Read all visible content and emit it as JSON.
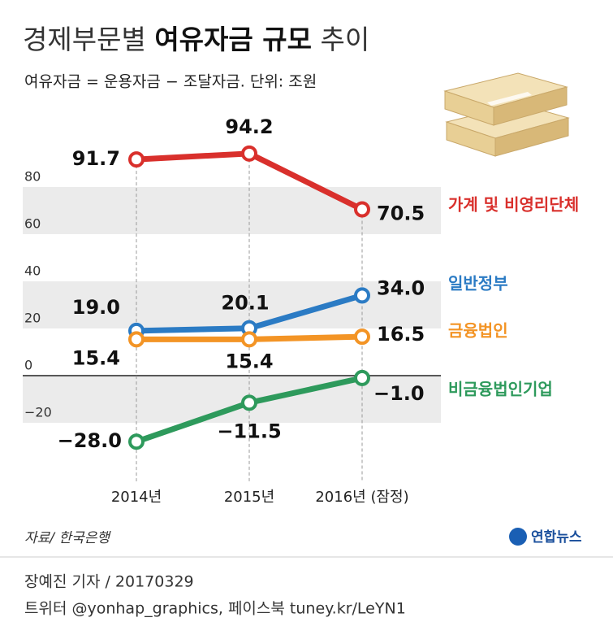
{
  "chart_data": {
    "type": "line",
    "title": [
      "경제부문별",
      "여유자금 규모",
      "추이"
    ],
    "subtitle": "여유자금 = 운용자금 − 조달자금. 단위: 조원",
    "categories": [
      "2014년",
      "2015년",
      "2016년 (잠정)"
    ],
    "series": [
      {
        "name": "가계 및 비영리단체",
        "color": "#d9302c",
        "values": [
          91.7,
          94.2,
          70.5
        ],
        "value_labels": [
          "91.7",
          "94.2",
          "70.5"
        ]
      },
      {
        "name": "일반정부",
        "color": "#2b7bc4",
        "values": [
          19.0,
          20.1,
          34.0
        ],
        "value_labels": [
          "19.0",
          "20.1",
          "34.0"
        ]
      },
      {
        "name": "금융법인",
        "color": "#f39425",
        "values": [
          15.4,
          15.4,
          16.5
        ],
        "value_labels": [
          "15.4",
          "15.4",
          "16.5"
        ]
      },
      {
        "name": "비금융법인기업",
        "color": "#2e9a5c",
        "values": [
          -28.0,
          -11.5,
          -1.0
        ],
        "value_labels": [
          "−28.0",
          "−11.5",
          "−1.0"
        ]
      }
    ],
    "ylim": [
      -40,
      100
    ],
    "yticks": [
      80,
      60,
      40,
      20,
      0,
      {
        "value": -20,
        "label": "−20"
      }
    ],
    "grid_bands": true,
    "source": "자료/ 한국은행",
    "logo": "연합뉴스",
    "credit": "장예진 기자 / 20170329",
    "social": "트위터 @yonhap_graphics, 페이스북 tuney.kr/LeYN1"
  }
}
